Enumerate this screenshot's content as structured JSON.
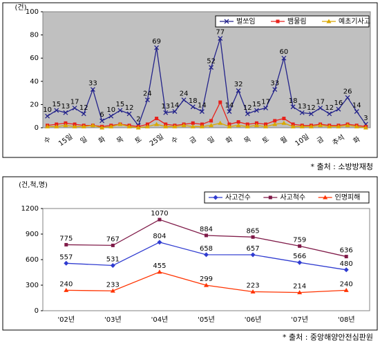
{
  "chart_data": [
    {
      "type": "line",
      "unit_label": "(건)",
      "source": "* 출처 : 소방방재청",
      "categories": [
        "수",
        null,
        "15일",
        null,
        "일",
        null,
        "화",
        null,
        "목",
        null,
        "토",
        null,
        "25일",
        null,
        "수",
        null,
        "금",
        null,
        "일",
        null,
        "화",
        null,
        "목",
        null,
        "토",
        null,
        "월",
        null,
        "10일",
        null,
        "금",
        null,
        "추석",
        null,
        "화",
        null
      ],
      "series": [
        {
          "name": "벌쏘임",
          "color": "#22228a",
          "marker": "x",
          "data_labels": true,
          "values": [
            10,
            15,
            13,
            17,
            12,
            33,
            6,
            10,
            15,
            12,
            2,
            24,
            69,
            13,
            14,
            24,
            18,
            14,
            52,
            77,
            14,
            32,
            12,
            15,
            17,
            33,
            60,
            18,
            13,
            12,
            17,
            12,
            16,
            26,
            14,
            3
          ]
        },
        {
          "name": "뱀물림",
          "color": "#e8201a",
          "marker": "square",
          "data_labels": false,
          "values": [
            2,
            3,
            4,
            3,
            2,
            2,
            1,
            2,
            3,
            2,
            1,
            3,
            8,
            3,
            2,
            3,
            4,
            3,
            6,
            22,
            3,
            5,
            3,
            4,
            3,
            6,
            8,
            3,
            2,
            2,
            3,
            2,
            2,
            3,
            2,
            1
          ]
        },
        {
          "name": "예초기사고",
          "color": "#d9a800",
          "marker": "triangle",
          "data_labels": false,
          "values": [
            1,
            1,
            2,
            1,
            1,
            2,
            0,
            1,
            3,
            1,
            0,
            1,
            3,
            1,
            1,
            2,
            1,
            1,
            2,
            4,
            1,
            2,
            1,
            2,
            1,
            3,
            4,
            1,
            1,
            1,
            2,
            1,
            1,
            2,
            1,
            0
          ]
        }
      ],
      "ylim": [
        0,
        100
      ],
      "yticks": [
        0,
        20,
        40,
        60,
        80,
        100
      ],
      "grid": false,
      "plot_background": "#c0c0c0",
      "rotate_x_labels": true
    },
    {
      "type": "line",
      "unit_label": "(건,척,명)",
      "source": "* 출처 : 중앙해양안전심판원",
      "categories": [
        "'02년",
        "'03년",
        "'04년",
        "'05년",
        "'06년",
        "'07년",
        "'08년"
      ],
      "series": [
        {
          "name": "사고건수",
          "color": "#2f3bd0",
          "marker": "diamond",
          "data_labels": true,
          "values": [
            557,
            531,
            804,
            658,
            657,
            566,
            480
          ]
        },
        {
          "name": "사고척수",
          "color": "#7f1a48",
          "marker": "square",
          "data_labels": true,
          "values": [
            775,
            767,
            1070,
            884,
            865,
            759,
            636
          ]
        },
        {
          "name": "인명피해",
          "color": "#ff3300",
          "marker": "triangle",
          "data_labels": true,
          "values": [
            240,
            233,
            455,
            299,
            223,
            214,
            240
          ]
        }
      ],
      "ylim": [
        0,
        1200
      ],
      "yticks": [
        0,
        300,
        600,
        900,
        1200
      ],
      "grid": false,
      "plot_background": "#ffffff",
      "rotate_x_labels": false
    }
  ]
}
